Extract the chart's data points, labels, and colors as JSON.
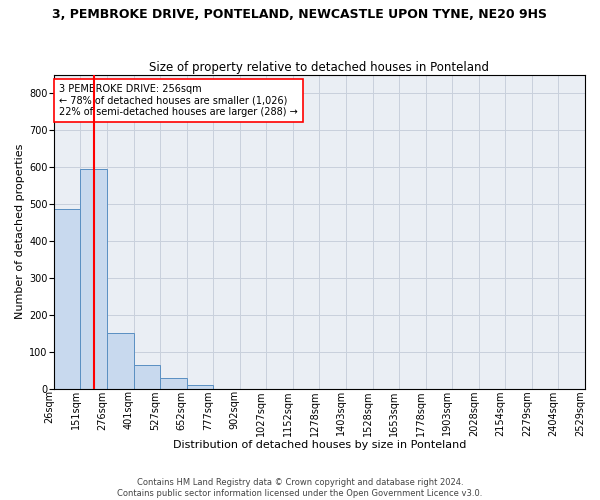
{
  "title": "3, PEMBROKE DRIVE, PONTELAND, NEWCASTLE UPON TYNE, NE20 9HS",
  "subtitle": "Size of property relative to detached houses in Ponteland",
  "xlabel": "Distribution of detached houses by size in Ponteland",
  "ylabel": "Number of detached properties",
  "bar_values": [
    487,
    594,
    150,
    65,
    28,
    10,
    0,
    0,
    0,
    0,
    0,
    0,
    0,
    0,
    0,
    0,
    0,
    0,
    0,
    0
  ],
  "bar_labels": [
    "26sqm",
    "151sqm",
    "276sqm",
    "401sqm",
    "527sqm",
    "652sqm",
    "777sqm",
    "902sqm",
    "1027sqm",
    "1152sqm",
    "1278sqm",
    "1403sqm",
    "1528sqm",
    "1653sqm",
    "1778sqm",
    "1903sqm",
    "2028sqm",
    "2154sqm",
    "2279sqm",
    "2404sqm",
    "2529sqm"
  ],
  "bar_color": "#c8d9ee",
  "bar_edge_color": "#5a8fc2",
  "grid_color": "#c8d0dc",
  "bg_color": "#eaeef4",
  "vline_color": "red",
  "vline_pos": 1.5,
  "annotation_text": "3 PEMBROKE DRIVE: 256sqm\n← 78% of detached houses are smaller (1,026)\n22% of semi-detached houses are larger (288) →",
  "annotation_box_color": "white",
  "annotation_box_edge": "red",
  "ylim": [
    0,
    850
  ],
  "yticks": [
    0,
    100,
    200,
    300,
    400,
    500,
    600,
    700,
    800
  ],
  "footer": "Contains HM Land Registry data © Crown copyright and database right 2024.\nContains public sector information licensed under the Open Government Licence v3.0.",
  "title_fontsize": 9,
  "subtitle_fontsize": 8.5,
  "axis_label_fontsize": 8,
  "tick_fontsize": 7,
  "annotation_fontsize": 7
}
